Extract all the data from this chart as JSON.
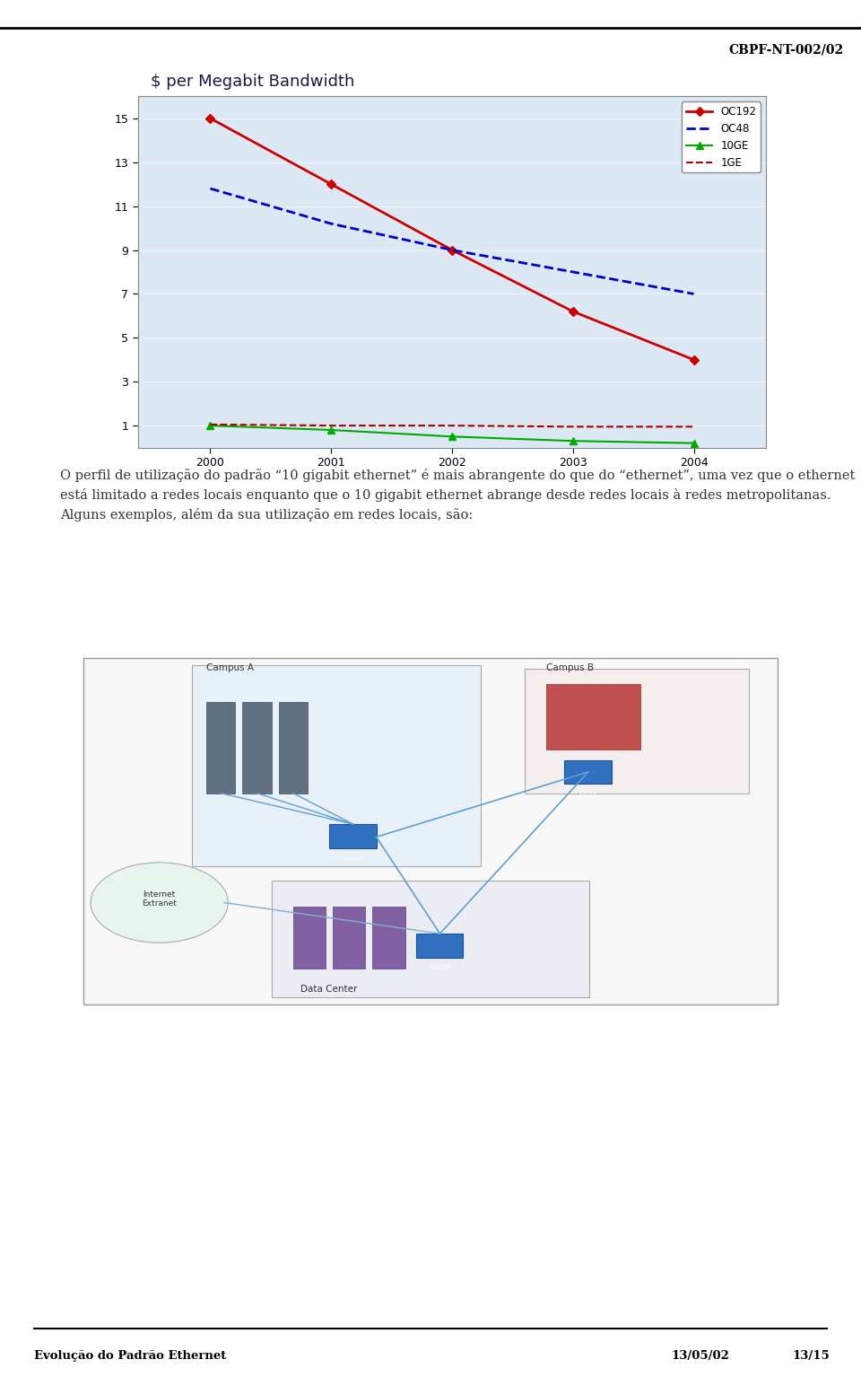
{
  "header_right": "CBPF-NT-002/02",
  "footer_left": "Evolução do Padrão Ethernet",
  "footer_right_date": "13/05/02",
  "footer_right_page": "13/15",
  "chart_title": "$ per Megabit Bandwidth",
  "x_values": [
    2000,
    2001,
    2002,
    2003,
    2004
  ],
  "oc192_values": [
    15,
    12.0,
    9.0,
    6.2,
    4.0
  ],
  "oc48_values": [
    11.8,
    10.2,
    9.0,
    8.0,
    7.0
  ],
  "ge10_values": [
    1.0,
    0.8,
    0.5,
    0.3,
    0.2
  ],
  "ge1_values": [
    1.05,
    1.0,
    1.0,
    0.95,
    0.95
  ],
  "oc192_color": "#cc0000",
  "oc48_color": "#0000cc",
  "ge10_color": "#00aa00",
  "ge1_color": "#aa0000",
  "yticks": [
    1,
    3,
    5,
    7,
    9,
    11,
    13,
    15
  ],
  "ylim": [
    0,
    16
  ],
  "chart_bg": "#dce9f5",
  "body_text": "O perfil de utilização do padrão “10 gigabit ethernet” é mais abrangente do que do “ethernet”, uma vez que o ethernet está limitado a redes locais enquanto que o 10 gigabit ethernet abrange desde redes locais à redes metropolitanas. Alguns exemplos, além da sua utilização em redes locais, são:",
  "page_bg": "#ffffff",
  "text_color": "#333333"
}
